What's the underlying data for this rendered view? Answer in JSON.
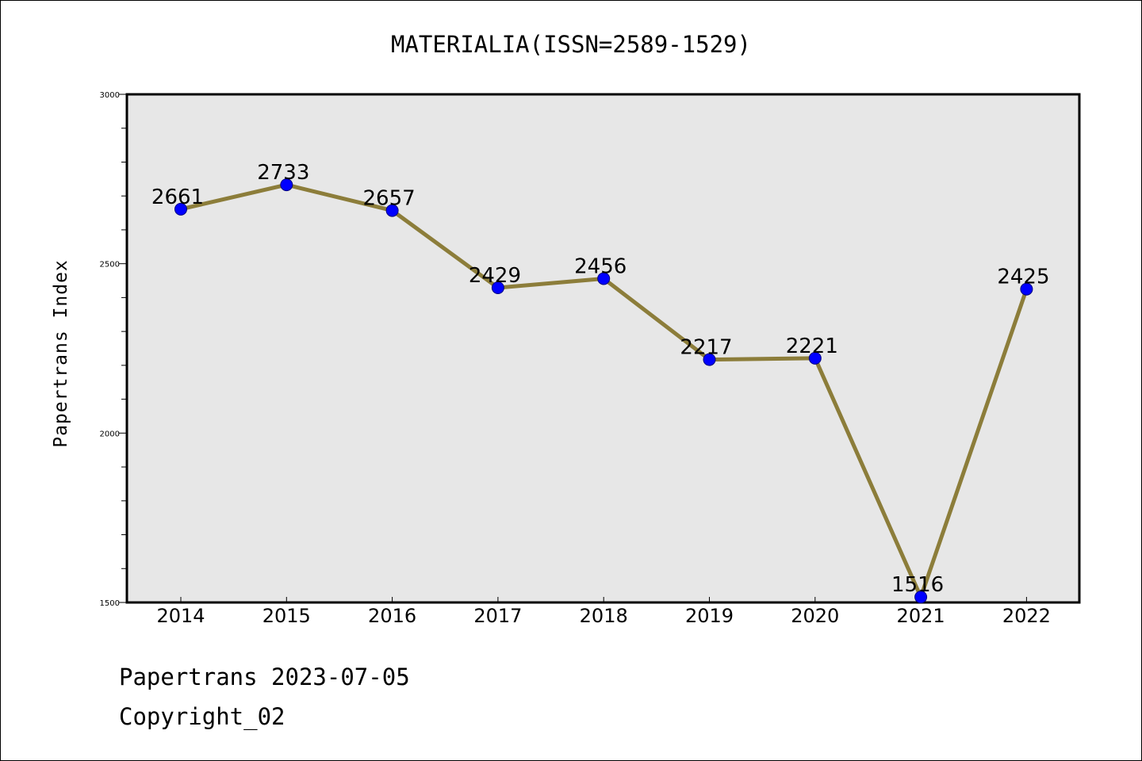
{
  "chart_data": {
    "type": "line",
    "title": "MATERIALIA(ISSN=2589-1529)",
    "xlabel": "",
    "ylabel": "Papertrans Index",
    "categories": [
      "2014",
      "2015",
      "2016",
      "2017",
      "2018",
      "2019",
      "2020",
      "2021",
      "2022"
    ],
    "series": [
      {
        "values": [
          2661,
          2733,
          2657,
          2429,
          2456,
          2217,
          2221,
          1516,
          2425
        ]
      }
    ],
    "ylim": [
      1500,
      3000
    ],
    "yticks": [
      "1500",
      "2000",
      "2500",
      "3000"
    ],
    "grid": false,
    "legend": "none",
    "line_color": "#8c7d3a",
    "marker_color": "#0000ff",
    "plot_background": "#e7e7e7"
  },
  "footer": {
    "line1": "Papertrans 2023-07-05",
    "line2": "Copyright_02"
  }
}
